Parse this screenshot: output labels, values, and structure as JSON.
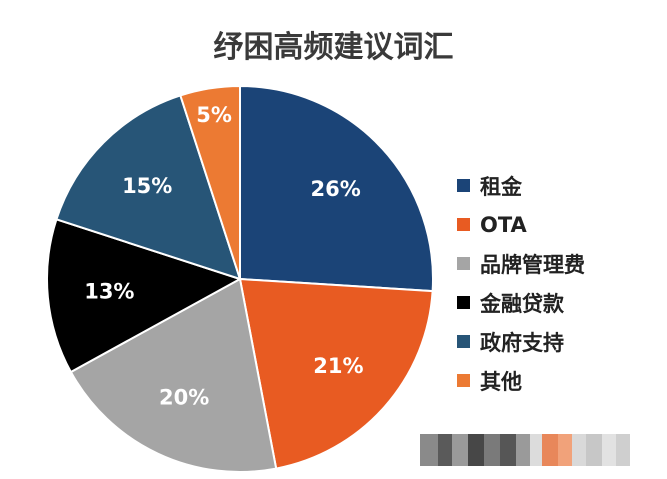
{
  "chart_data": {
    "type": "pie",
    "title": "纾困高频建议词汇",
    "slices": [
      {
        "label": "租金",
        "value": 26,
        "display": "26%",
        "color": "#1b4477"
      },
      {
        "label": "OTA",
        "value": 21,
        "display": "21%",
        "color": "#e85b22"
      },
      {
        "label": "品牌管理费",
        "value": 20,
        "display": "20%",
        "color": "#a5a5a5"
      },
      {
        "label": "金融贷款",
        "value": 13,
        "display": "13%",
        "color": "#000000"
      },
      {
        "label": "政府支持",
        "value": 15,
        "display": "15%",
        "color": "#275577"
      },
      {
        "label": "其他",
        "value": 5,
        "display": "5%",
        "color": "#ec7a33"
      }
    ],
    "legend_position": "right"
  }
}
